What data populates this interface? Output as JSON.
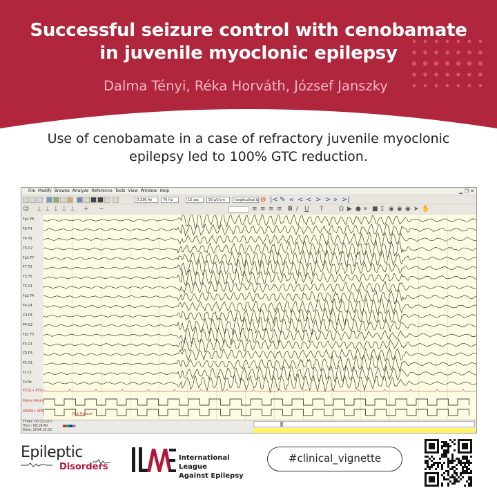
{
  "header": {
    "title_line1": "Successful seizure control with cenobamate",
    "title_line2": "in juvenile myoclonic epilepsy",
    "authors": "Dalma Tényi, Réka Horváth, József Janszky",
    "background_color": "#b0263d"
  },
  "summary": {
    "line1": "Use of cenobamate in a case of refractory juvenile myoclonic",
    "line2": "epilepsy led to 100% GTC reduction."
  },
  "eeg_window": {
    "menu": [
      "File",
      "Modify",
      "Browse",
      "Analyse",
      "Reference",
      "Tools",
      "View",
      "Window",
      "Help"
    ],
    "toolbar": {
      "lowcut": "0.336 Hz",
      "highcut": "70 Hz",
      "timebase": "15 sec",
      "sensitivity": "50 µV/cm",
      "montage": "longitudinal bi..."
    },
    "channels": [
      "Fp2 F8",
      "F8 T4",
      "T4 T6",
      "T6 O2",
      "Fp1 F7",
      "F7 T3",
      "T3 T5",
      "T5 O1",
      "Fp2 F4",
      "F4 C4",
      "C4 P4",
      "P4 O2",
      "Fp1 F3",
      "F3 C3",
      "C3 P3",
      "P3 O1",
      "Fz Cz",
      "Cz Pz",
      "ECG1+ ECG1-",
      "Mstim Mstim..",
      "SPARK+ SPARK-"
    ],
    "annotation": "Not Present",
    "status": {
      "timer": "Timer: 00:11:10.0",
      "hour": "Hour: 00:18:40",
      "date": "Date: 2014.10.02."
    }
  },
  "footer": {
    "journal_line1": "Epileptic",
    "journal_line2": "Disorders",
    "org_line1": "International League",
    "org_line2": "Against Epilepsy",
    "hashtag": "#clinical_vignette",
    "accent_color": "#b5173b"
  }
}
